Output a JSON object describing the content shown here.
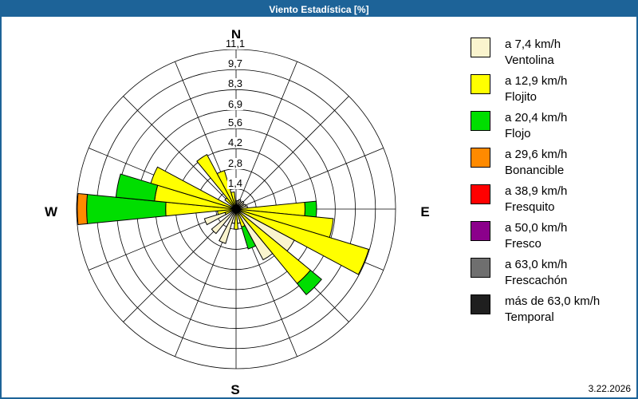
{
  "window": {
    "title": "Viento Estadística [%]",
    "date": "3.22.2026",
    "titlebar_color": "#1d6398",
    "border_color": "#1d6398"
  },
  "chart_data": {
    "type": "wind-rose-stacked-polar-bar",
    "units": "%",
    "title": "Viento Estadística [%]",
    "compass": {
      "n": "N",
      "e": "E",
      "s": "S",
      "w": "W"
    },
    "ring_labels": [
      "1,4",
      "2,8",
      "4,2",
      "5,6",
      "6,9",
      "8,3",
      "9,7",
      "11,1"
    ],
    "ring_values": [
      1.4,
      2.8,
      4.2,
      5.6,
      6.9,
      8.3,
      9.7,
      11.1
    ],
    "max_value": 11.1,
    "grid_on": true,
    "grid_spoke_step_deg": 22.5,
    "bar_width_deg": 11.25,
    "grid_color": "#000000",
    "colors": {
      "ventolina": "#FAF4CE",
      "flojito": "#FFFF00",
      "flojo": "#00DE00",
      "bonancible": "#FF8A00",
      "fresquito": "#FF0000",
      "fresco": "#8B008B",
      "frescachon": "#6F6F6F",
      "temporal": "#1F1F1F"
    },
    "bars": [
      {
        "dir": "NbE",
        "bearing": 11.25,
        "segments": [
          {
            "class": "ventolina",
            "to": 0.6
          }
        ]
      },
      {
        "dir": "NNE",
        "bearing": 22.5,
        "segments": [
          {
            "class": "ventolina",
            "to": 0.7
          }
        ]
      },
      {
        "dir": "NEbN",
        "bearing": 33.75,
        "segments": [
          {
            "class": "ventolina",
            "to": 0.6
          }
        ]
      },
      {
        "dir": "NE",
        "bearing": 45,
        "segments": [
          {
            "class": "ventolina",
            "to": 0.7
          }
        ]
      },
      {
        "dir": "NEbE",
        "bearing": 56.25,
        "segments": [
          {
            "class": "ventolina",
            "to": 0.6
          }
        ]
      },
      {
        "dir": "ENE",
        "bearing": 67.5,
        "segments": [
          {
            "class": "ventolina",
            "to": 0.7
          }
        ]
      },
      {
        "dir": "EbN",
        "bearing": 78.75,
        "segments": [
          {
            "class": "ventolina",
            "to": 0.8
          }
        ]
      },
      {
        "dir": "E",
        "bearing": 90,
        "segments": [
          {
            "class": "flojito",
            "to": 4.8
          },
          {
            "class": "flojo",
            "to": 5.6
          }
        ]
      },
      {
        "dir": "EbS",
        "bearing": 101.25,
        "segments": [
          {
            "class": "flojito",
            "to": 6.8
          }
        ]
      },
      {
        "dir": "ESE",
        "bearing": 112.5,
        "segments": [
          {
            "class": "flojito",
            "to": 9.65
          }
        ]
      },
      {
        "dir": "SEbE",
        "bearing": 123.75,
        "segments": [
          {
            "class": "ventolina",
            "to": 4.6
          }
        ]
      },
      {
        "dir": "SE",
        "bearing": 135,
        "segments": [
          {
            "class": "flojito",
            "to": 6.7
          },
          {
            "class": "flojo",
            "to": 7.7
          }
        ]
      },
      {
        "dir": "SEbS",
        "bearing": 146.25,
        "segments": [
          {
            "class": "ventolina",
            "to": 4.0
          }
        ]
      },
      {
        "dir": "SSE",
        "bearing": 157.5,
        "segments": [
          {
            "class": "flojito",
            "to": 1.3
          },
          {
            "class": "flojo",
            "to": 2.9
          }
        ]
      },
      {
        "dir": "SbE",
        "bearing": 168.75,
        "segments": [
          {
            "class": "ventolina",
            "to": 1.0
          }
        ]
      },
      {
        "dir": "S",
        "bearing": 180,
        "segments": [
          {
            "class": "flojito",
            "to": 1.4
          }
        ]
      },
      {
        "dir": "SbW",
        "bearing": 191.25,
        "segments": [
          {
            "class": "ventolina",
            "to": 1.0
          }
        ]
      },
      {
        "dir": "SSW",
        "bearing": 202.5,
        "segments": [
          {
            "class": "ventolina",
            "to": 2.5
          }
        ]
      },
      {
        "dir": "SW",
        "bearing": 225,
        "segments": [
          {
            "class": "ventolina",
            "to": 2.2
          }
        ]
      },
      {
        "dir": "WSW",
        "bearing": 247.5,
        "segments": [
          {
            "class": "flojito",
            "to": 0.8
          },
          {
            "class": "ventolina",
            "to": 2.3
          }
        ]
      },
      {
        "dir": "WbS",
        "bearing": 258.75,
        "segments": [
          {
            "class": "flojito",
            "to": 1.3
          }
        ]
      },
      {
        "dir": "W",
        "bearing": 270,
        "segments": [
          {
            "class": "flojito",
            "to": 4.9
          },
          {
            "class": "flojo",
            "to": 10.4
          },
          {
            "class": "bonancible",
            "to": 11.05
          }
        ]
      },
      {
        "dir": "WbN",
        "bearing": 281.25,
        "segments": [
          {
            "class": "flojito",
            "to": 5.7
          },
          {
            "class": "flojo",
            "to": 8.4
          }
        ]
      },
      {
        "dir": "WNW",
        "bearing": 292.5,
        "segments": [
          {
            "class": "flojito",
            "to": 6.2
          }
        ]
      },
      {
        "dir": "NW",
        "bearing": 315,
        "segments": [
          {
            "class": "flojito",
            "to": 1.0
          }
        ]
      },
      {
        "dir": "NWbN",
        "bearing": 326.25,
        "segments": [
          {
            "class": "flojito",
            "to": 4.3
          }
        ]
      },
      {
        "dir": "NNW",
        "bearing": 337.5,
        "segments": [
          {
            "class": "flojito",
            "to": 2.8
          }
        ]
      },
      {
        "dir": "NbW",
        "bearing": 348.75,
        "segments": [
          {
            "class": "flojito",
            "to": 1.2
          }
        ]
      }
    ]
  },
  "legend": {
    "items": [
      {
        "key": "ventolina",
        "color": "#FAF4CE",
        "speed_label": "a 7,4 km/h",
        "name": "Ventolina"
      },
      {
        "key": "flojito",
        "color": "#FFFF00",
        "speed_label": "a 12,9 km/h",
        "name": "Flojito"
      },
      {
        "key": "flojo",
        "color": "#00DE00",
        "speed_label": "a 20,4 km/h",
        "name": "Flojo"
      },
      {
        "key": "bonancible",
        "color": "#FF8A00",
        "speed_label": "a 29,6 km/h",
        "name": "Bonancible"
      },
      {
        "key": "fresquito",
        "color": "#FF0000",
        "speed_label": "a 38,9 km/h",
        "name": "Fresquito"
      },
      {
        "key": "fresco",
        "color": "#8B008B",
        "speed_label": "a 50,0 km/h",
        "name": "Fresco"
      },
      {
        "key": "frescachon",
        "color": "#6F6F6F",
        "speed_label": "a 63,0 km/h",
        "name": "Frescachón"
      },
      {
        "key": "temporal",
        "color": "#1F1F1F",
        "speed_label": "más de 63,0 km/h",
        "name": "Temporal"
      }
    ]
  }
}
